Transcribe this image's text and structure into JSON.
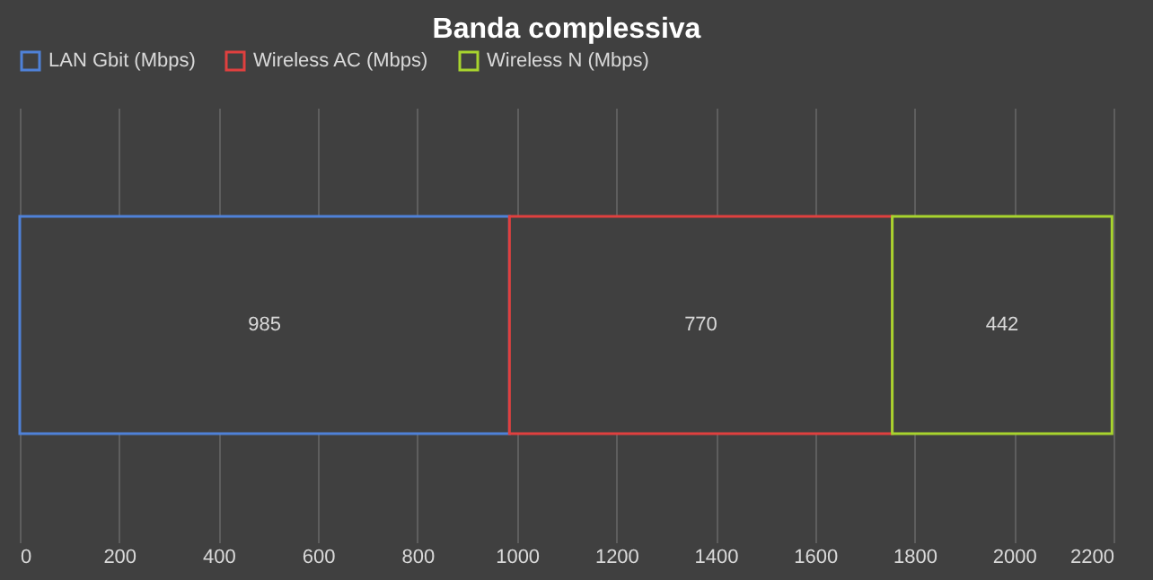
{
  "chart_data": {
    "type": "bar",
    "orientation": "horizontal",
    "stacked": true,
    "title": "Banda complessiva",
    "categories": [
      null
    ],
    "series": [
      {
        "name": "LAN Gbit (Mbps)",
        "color": "#4f81d8",
        "values": [
          985
        ]
      },
      {
        "name": "Wireless AC (Mbps)",
        "color": "#e0403f",
        "values": [
          770
        ]
      },
      {
        "name": "Wireless N (Mbps)",
        "color": "#a8d42e",
        "values": [
          442
        ]
      }
    ],
    "xlim": [
      0,
      2200
    ],
    "xticks": [
      0,
      200,
      400,
      600,
      800,
      1000,
      1200,
      1400,
      1600,
      1800,
      2000,
      2200
    ],
    "grid": "x",
    "legend": "top",
    "data_labels": true,
    "tick_labels": "x"
  }
}
